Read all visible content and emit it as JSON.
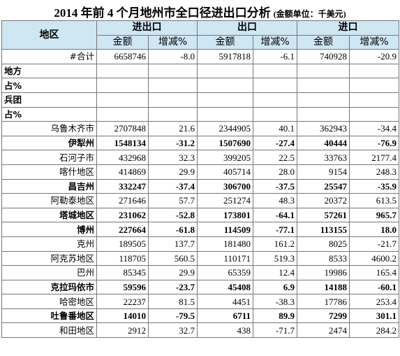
{
  "header": {
    "title": "2014 年前 4 个月地州市全口径进出口分析",
    "unit": "(金额单位：千美元)"
  },
  "table": {
    "region_header": "地区",
    "groups": [
      "进出口",
      "出口",
      "进口"
    ],
    "subheaders": [
      "金额",
      "增减%",
      "金额",
      "增减%",
      "金额",
      "增减%"
    ],
    "rows": [
      {
        "label": "#合计",
        "values": [
          "6658746",
          "-8.0",
          "5917818",
          "-6.1",
          "740928",
          "-20.9"
        ]
      },
      {
        "label": "地方",
        "section": true,
        "values": []
      },
      {
        "label": "占%",
        "section": true,
        "values": []
      },
      {
        "label": "兵团",
        "section": true,
        "values": []
      },
      {
        "label": "占%",
        "section": true,
        "values": []
      },
      {
        "label": "乌鲁木齐市",
        "values": [
          "2707848",
          "21.6",
          "2344905",
          "40.1",
          "362943",
          "-34.4"
        ]
      },
      {
        "label": "伊犁州",
        "bold": true,
        "values": [
          "1548134",
          "-31.2",
          "1507690",
          "-27.4",
          "40444",
          "-76.9"
        ]
      },
      {
        "label": "石河子市",
        "values": [
          "432968",
          "32.3",
          "399205",
          "22.5",
          "33763",
          "2177.4"
        ]
      },
      {
        "label": "喀什地区",
        "values": [
          "414869",
          "29.9",
          "405714",
          "28.0",
          "9154",
          "248.3"
        ]
      },
      {
        "label": "昌吉州",
        "bold": true,
        "values": [
          "332247",
          "-37.4",
          "306700",
          "-37.5",
          "25547",
          "-35.9"
        ]
      },
      {
        "label": "阿勒泰地区",
        "values": [
          "271646",
          "57.7",
          "251274",
          "48.3",
          "20372",
          "613.5"
        ]
      },
      {
        "label": "塔城地区",
        "bold": true,
        "values": [
          "231062",
          "-52.8",
          "173801",
          "-64.1",
          "57261",
          "965.7"
        ]
      },
      {
        "label": "博州",
        "bold": true,
        "values": [
          "227664",
          "-61.8",
          "114509",
          "-77.1",
          "113155",
          "18.0"
        ]
      },
      {
        "label": "克州",
        "values": [
          "189505",
          "137.7",
          "181480",
          "161.2",
          "8025",
          "-21.7"
        ]
      },
      {
        "label": "阿克苏地区",
        "values": [
          "118705",
          "560.5",
          "110171",
          "519.3",
          "8533",
          "4600.2"
        ]
      },
      {
        "label": "巴州",
        "values": [
          "85345",
          "29.9",
          "65359",
          "12.4",
          "19986",
          "165.4"
        ]
      },
      {
        "label": "克拉玛依市",
        "bold": true,
        "values": [
          "59596",
          "-23.7",
          "45408",
          "6.9",
          "14188",
          "-60.1"
        ]
      },
      {
        "label": "哈密地区",
        "values": [
          "22237",
          "81.5",
          "4451",
          "-38.3",
          "17786",
          "253.4"
        ]
      },
      {
        "label": "吐鲁番地区",
        "bold": true,
        "values": [
          "14010",
          "-79.5",
          "6711",
          "89.9",
          "7299",
          "301.1"
        ]
      },
      {
        "label": "和田地区",
        "values": [
          "2912",
          "32.7",
          "438",
          "-71.7",
          "2474",
          "284.2"
        ]
      }
    ]
  }
}
